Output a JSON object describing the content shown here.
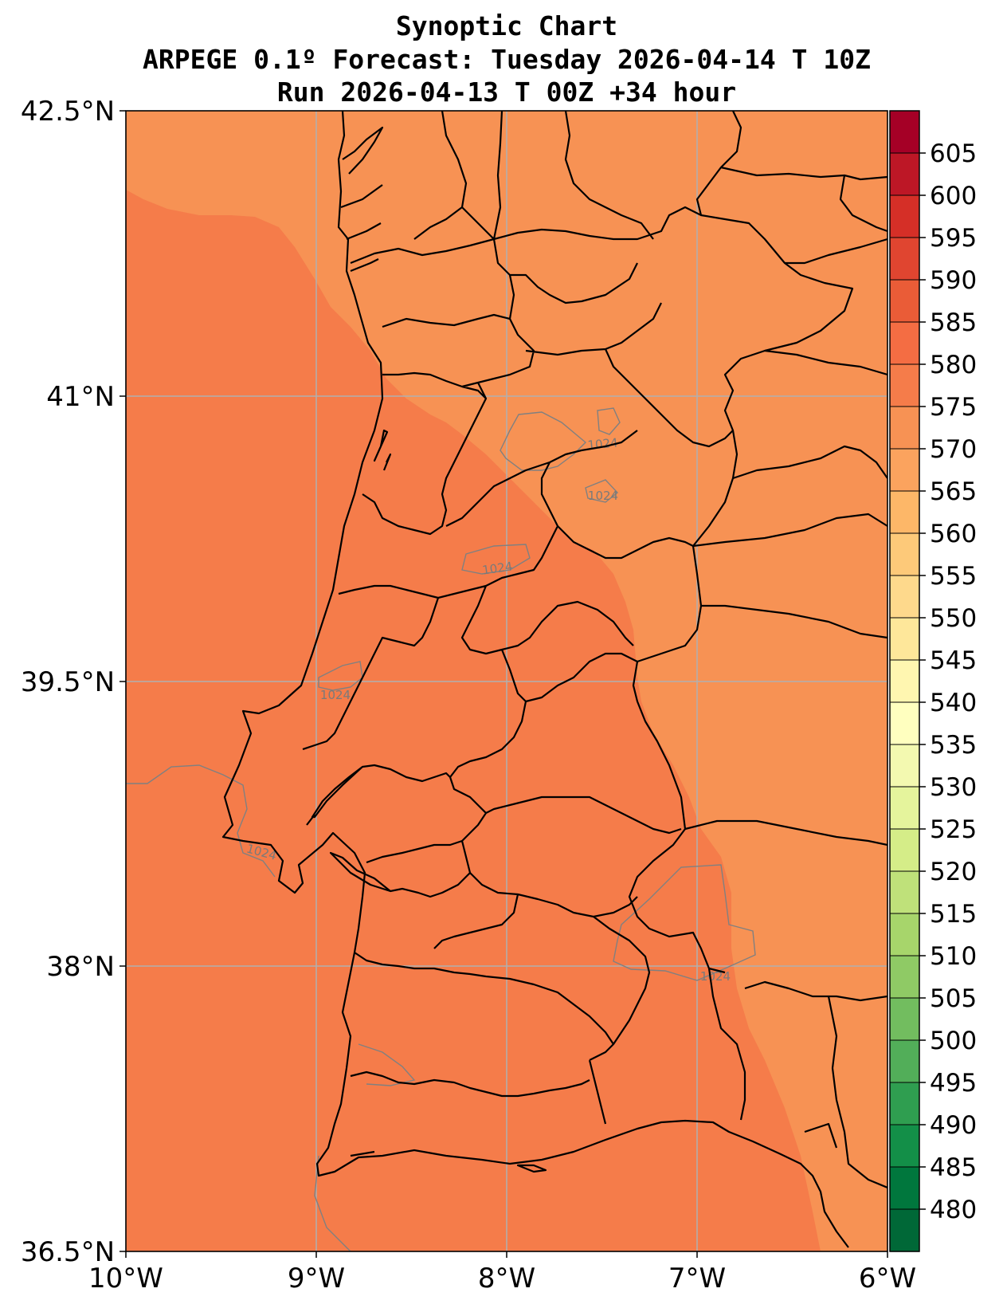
{
  "title": {
    "line1": "Synoptic Chart",
    "line2": "ARPEGE 0.1º Forecast: Tuesday 2026-04-14 T 10Z",
    "line3": "Run 2026-04-13 T 00Z +34 hour"
  },
  "map": {
    "lon_range": [
      -10,
      -6
    ],
    "lat_range": [
      36.5,
      42.5
    ],
    "x_ticks": [
      {
        "value": -10,
        "label": "10°W"
      },
      {
        "value": -9,
        "label": "9°W"
      },
      {
        "value": -8,
        "label": "8°W"
      },
      {
        "value": -7,
        "label": "7°W"
      },
      {
        "value": -6,
        "label": "6°W"
      }
    ],
    "y_ticks": [
      {
        "value": 42.5,
        "label": "42.5°N"
      },
      {
        "value": 41,
        "label": "41°N"
      },
      {
        "value": 39.5,
        "label": "39.5°N"
      },
      {
        "value": 38,
        "label": "38°N"
      },
      {
        "value": 36.5,
        "label": "36.5°N"
      }
    ],
    "gridlines": true,
    "fill_field": "500 hPa geopotential height (dam)",
    "fill_bands_present": [
      {
        "range": "575–580",
        "color": "#f57c4a"
      },
      {
        "range": "570–575",
        "color": "#f79254"
      }
    ],
    "contour_field": "sea level pressure (hPa)",
    "contour_labels": [
      "1024",
      "1024",
      "1024",
      "1024",
      "1024",
      "1024"
    ],
    "contour_color": "#808080",
    "coastline_color": "#000000",
    "grid_color": "#b0b0b0"
  },
  "colorbar": {
    "labels": [
      "605",
      "600",
      "595",
      "590",
      "585",
      "580",
      "575",
      "570",
      "565",
      "560",
      "555",
      "550",
      "545",
      "540",
      "535",
      "530",
      "525",
      "520",
      "515",
      "510",
      "505",
      "500",
      "495",
      "490",
      "485",
      "480"
    ],
    "colors": [
      "#a50026",
      "#bd1726",
      "#d52f27",
      "#e04530",
      "#ea5c37",
      "#f46d43",
      "#f57c4a",
      "#f79254",
      "#fba35e",
      "#fdb768",
      "#fdc979",
      "#fed98c",
      "#fee79a",
      "#fff6b0",
      "#ffffbf",
      "#f3f9b0",
      "#e5f49c",
      "#d5ed88",
      "#bfe17a",
      "#a7d56b",
      "#8fca65",
      "#72bd5f",
      "#52ae59",
      "#2f9e50",
      "#138f48",
      "#00773d",
      "#006837"
    ]
  }
}
